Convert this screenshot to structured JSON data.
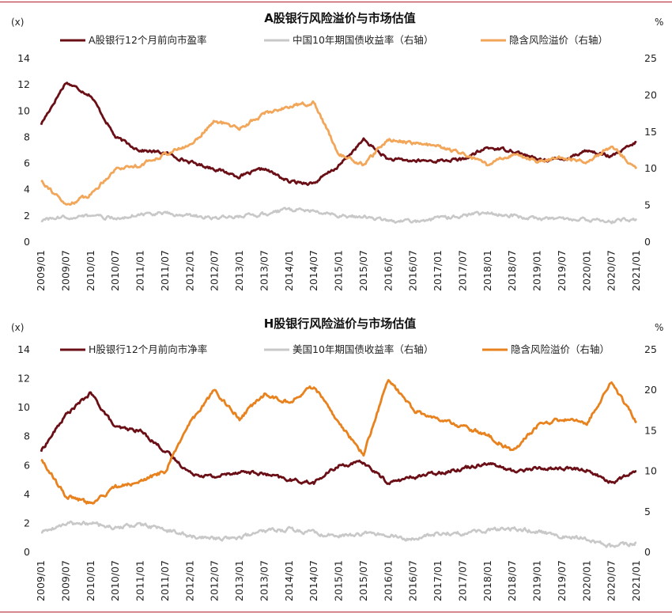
{
  "chart_data": [
    {
      "type": "line",
      "title": "A股银行风险溢价与市场估值",
      "left_unit": "(x)",
      "right_unit": "%",
      "ylim_left": [
        0,
        14
      ],
      "yticks_left": [
        "0",
        "2",
        "4",
        "6",
        "8",
        "10",
        "12",
        "14"
      ],
      "ylim_right": [
        0,
        25
      ],
      "yticks_right": [
        "0",
        "5",
        "10",
        "15",
        "20",
        "25"
      ],
      "x_categories": [
        "2009/01",
        "2009/07",
        "2010/01",
        "2010/07",
        "2011/01",
        "2011/07",
        "2012/01",
        "2012/07",
        "2013/01",
        "2013/07",
        "2014/01",
        "2014/07",
        "2015/01",
        "2015/07",
        "2016/01",
        "2016/07",
        "2017/01",
        "2017/07",
        "2018/01",
        "2018/07",
        "2019/01",
        "2019/07",
        "2020/01",
        "2020/07",
        "2021/01"
      ],
      "series": [
        {
          "name": "A股银行12个月前向市盈率",
          "axis": "left",
          "color": "#6b0f17",
          "values": [
            9.0,
            12.2,
            11.2,
            8.0,
            7.0,
            6.8,
            6.1,
            5.6,
            5.0,
            5.6,
            4.6,
            4.5,
            5.8,
            7.8,
            6.3,
            6.2,
            6.2,
            6.3,
            7.2,
            7.0,
            6.3,
            6.3,
            7.0,
            6.5,
            7.6
          ]
        },
        {
          "name": "中国10年期国债收益率（右轴）",
          "axis": "right",
          "color": "#c8c8c8",
          "values": [
            3.0,
            3.4,
            3.6,
            3.2,
            3.8,
            3.9,
            3.6,
            3.3,
            3.5,
            3.8,
            4.5,
            4.2,
            3.6,
            3.4,
            2.9,
            2.8,
            3.2,
            3.6,
            3.9,
            3.6,
            3.1,
            3.2,
            3.0,
            2.8,
            3.2
          ]
        },
        {
          "name": "隐含风险溢价（右轴）",
          "axis": "right",
          "color": "#f2a65a",
          "values": [
            8.5,
            5.0,
            6.5,
            10.0,
            10.5,
            12.0,
            13.2,
            16.5,
            15.5,
            17.5,
            18.5,
            19.0,
            12.0,
            10.5,
            14.0,
            13.5,
            13.0,
            12.0,
            10.5,
            12.0,
            11.0,
            11.5,
            11.0,
            13.0,
            10.0
          ]
        }
      ]
    },
    {
      "type": "line",
      "title": "H股银行风险溢价与市场估值",
      "left_unit": "(x)",
      "right_unit": "%",
      "ylim_left": [
        0,
        14
      ],
      "yticks_left": [
        "0",
        "2",
        "4",
        "6",
        "8",
        "10",
        "12",
        "14"
      ],
      "ylim_right": [
        0,
        25
      ],
      "yticks_right": [
        "0",
        "5",
        "10",
        "15",
        "20",
        "25"
      ],
      "x_categories": [
        "2009/01",
        "2009/07",
        "2010/01",
        "2010/07",
        "2011/01",
        "2011/07",
        "2012/01",
        "2012/07",
        "2013/01",
        "2013/07",
        "2014/01",
        "2014/07",
        "2015/01",
        "2015/07",
        "2016/01",
        "2016/07",
        "2017/01",
        "2017/07",
        "2018/01",
        "2018/07",
        "2019/01",
        "2019/07",
        "2020/01",
        "2020/07",
        "2021/01"
      ],
      "series": [
        {
          "name": "H股银行12个月前向市净率",
          "axis": "left",
          "color": "#6b0f17",
          "values": [
            7.0,
            9.5,
            11.0,
            8.6,
            8.4,
            7.0,
            5.5,
            5.2,
            5.6,
            5.4,
            5.0,
            4.8,
            6.0,
            6.2,
            4.8,
            5.2,
            5.5,
            5.8,
            6.2,
            5.6,
            5.8,
            5.8,
            5.7,
            4.8,
            5.6
          ]
        },
        {
          "name": "美国10年期国债收益率（右轴）",
          "axis": "right",
          "color": "#c8c8c8",
          "values": [
            2.5,
            3.5,
            3.6,
            3.0,
            3.4,
            2.8,
            2.0,
            1.7,
            1.9,
            2.6,
            2.8,
            2.4,
            2.0,
            2.3,
            2.1,
            1.6,
            2.4,
            2.3,
            2.7,
            2.9,
            2.6,
            2.0,
            1.7,
            0.7,
            1.2
          ]
        },
        {
          "name": "隐含风险溢价（右轴）",
          "axis": "right",
          "color": "#e8821e",
          "values": [
            11.5,
            7.0,
            6.0,
            8.0,
            8.8,
            10.0,
            16.0,
            20.0,
            16.5,
            19.5,
            18.5,
            20.5,
            16.0,
            12.0,
            21.5,
            17.5,
            16.5,
            15.5,
            14.5,
            12.5,
            15.5,
            16.5,
            16.0,
            21.0,
            16.0
          ]
        }
      ]
    }
  ]
}
